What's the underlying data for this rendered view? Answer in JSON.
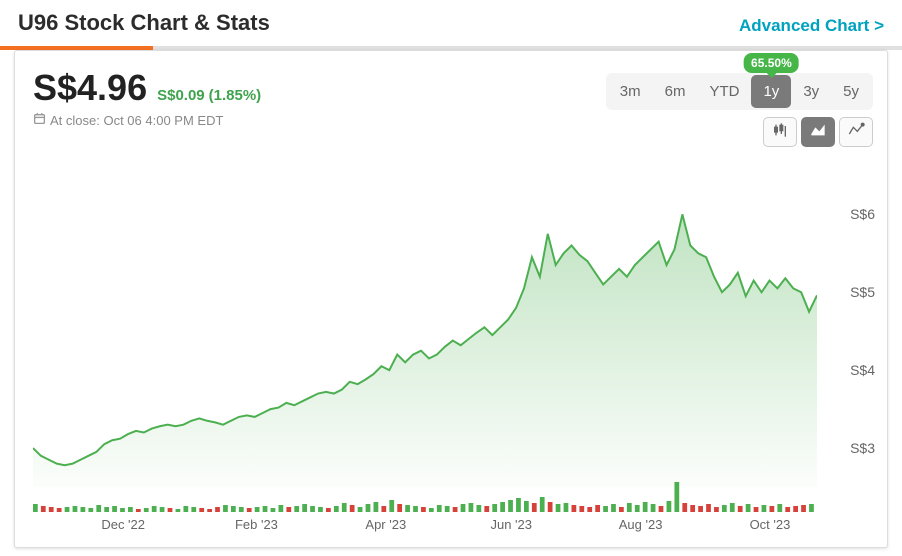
{
  "header": {
    "title": "U96 Stock Chart & Stats",
    "advanced_link": "Advanced Chart >",
    "progress_pct": 17
  },
  "quote": {
    "price": "S$4.96",
    "delta_abs": "S$0.09",
    "delta_pct": "(1.85%)",
    "delta_positive": true,
    "close_text": "At close: Oct 06 4:00 PM EDT"
  },
  "ranges": {
    "items": [
      "3m",
      "6m",
      "YTD",
      "1y",
      "3y",
      "5y"
    ],
    "active_index": 3,
    "active_badge": "65.50%"
  },
  "chart_types": {
    "items": [
      "candlestick",
      "area",
      "line"
    ],
    "active_index": 1
  },
  "chart": {
    "type": "area",
    "line_color": "#4caf50",
    "line_width": 2,
    "fill_top": "rgba(76,175,80,0.35)",
    "fill_bottom": "rgba(76,175,80,0.02)",
    "y_min": 2.5,
    "y_max": 6.3,
    "y_ticks": [
      3,
      4,
      5,
      6
    ],
    "y_tick_prefix": "S$",
    "x_labels": [
      "Dec '22",
      "Feb '23",
      "Apr '23",
      "Jun '23",
      "Aug '23",
      "Oct '23"
    ],
    "x_label_positions_pct": [
      11.5,
      28.5,
      45,
      61,
      77.5,
      94
    ],
    "series": [
      3.0,
      2.9,
      2.85,
      2.8,
      2.78,
      2.8,
      2.85,
      2.9,
      2.95,
      3.05,
      3.1,
      3.12,
      3.18,
      3.22,
      3.2,
      3.25,
      3.28,
      3.3,
      3.28,
      3.3,
      3.35,
      3.38,
      3.35,
      3.33,
      3.3,
      3.35,
      3.4,
      3.42,
      3.4,
      3.45,
      3.5,
      3.52,
      3.58,
      3.55,
      3.6,
      3.65,
      3.7,
      3.72,
      3.7,
      3.75,
      3.85,
      3.82,
      3.88,
      3.95,
      4.05,
      4.0,
      4.2,
      4.1,
      4.2,
      4.25,
      4.15,
      4.2,
      4.3,
      4.38,
      4.32,
      4.4,
      4.48,
      4.55,
      4.45,
      4.55,
      4.65,
      4.8,
      5.05,
      5.45,
      5.2,
      5.75,
      5.35,
      5.5,
      5.6,
      5.48,
      5.4,
      5.25,
      5.1,
      5.2,
      5.3,
      5.2,
      5.35,
      5.45,
      5.55,
      5.65,
      5.35,
      5.55,
      6.0,
      5.6,
      5.5,
      5.45,
      5.2,
      5.0,
      5.1,
      5.25,
      4.95,
      5.15,
      5.0,
      5.15,
      5.05,
      5.18,
      5.05,
      5.0,
      4.75,
      4.96
    ],
    "volume": {
      "up_color": "#4caf50",
      "down_color": "#d6423a",
      "values": [
        {
          "v": 8,
          "d": 1
        },
        {
          "v": 6,
          "d": -1
        },
        {
          "v": 5,
          "d": -1
        },
        {
          "v": 4,
          "d": -1
        },
        {
          "v": 5,
          "d": 1
        },
        {
          "v": 6,
          "d": 1
        },
        {
          "v": 5,
          "d": 1
        },
        {
          "v": 4,
          "d": 1
        },
        {
          "v": 7,
          "d": 1
        },
        {
          "v": 5,
          "d": 1
        },
        {
          "v": 6,
          "d": 1
        },
        {
          "v": 4,
          "d": 1
        },
        {
          "v": 5,
          "d": 1
        },
        {
          "v": 3,
          "d": -1
        },
        {
          "v": 4,
          "d": 1
        },
        {
          "v": 6,
          "d": 1
        },
        {
          "v": 5,
          "d": 1
        },
        {
          "v": 4,
          "d": -1
        },
        {
          "v": 3,
          "d": 1
        },
        {
          "v": 6,
          "d": 1
        },
        {
          "v": 5,
          "d": 1
        },
        {
          "v": 4,
          "d": -1
        },
        {
          "v": 3,
          "d": -1
        },
        {
          "v": 5,
          "d": -1
        },
        {
          "v": 7,
          "d": 1
        },
        {
          "v": 6,
          "d": 1
        },
        {
          "v": 5,
          "d": 1
        },
        {
          "v": 4,
          "d": -1
        },
        {
          "v": 5,
          "d": 1
        },
        {
          "v": 6,
          "d": 1
        },
        {
          "v": 4,
          "d": 1
        },
        {
          "v": 7,
          "d": 1
        },
        {
          "v": 5,
          "d": -1
        },
        {
          "v": 6,
          "d": 1
        },
        {
          "v": 8,
          "d": 1
        },
        {
          "v": 6,
          "d": 1
        },
        {
          "v": 5,
          "d": 1
        },
        {
          "v": 4,
          "d": -1
        },
        {
          "v": 6,
          "d": 1
        },
        {
          "v": 9,
          "d": 1
        },
        {
          "v": 7,
          "d": -1
        },
        {
          "v": 5,
          "d": 1
        },
        {
          "v": 8,
          "d": 1
        },
        {
          "v": 10,
          "d": 1
        },
        {
          "v": 6,
          "d": -1
        },
        {
          "v": 12,
          "d": 1
        },
        {
          "v": 8,
          "d": -1
        },
        {
          "v": 7,
          "d": 1
        },
        {
          "v": 6,
          "d": 1
        },
        {
          "v": 5,
          "d": -1
        },
        {
          "v": 4,
          "d": 1
        },
        {
          "v": 7,
          "d": 1
        },
        {
          "v": 6,
          "d": 1
        },
        {
          "v": 5,
          "d": -1
        },
        {
          "v": 8,
          "d": 1
        },
        {
          "v": 9,
          "d": 1
        },
        {
          "v": 7,
          "d": 1
        },
        {
          "v": 6,
          "d": -1
        },
        {
          "v": 8,
          "d": 1
        },
        {
          "v": 10,
          "d": 1
        },
        {
          "v": 12,
          "d": 1
        },
        {
          "v": 14,
          "d": 1
        },
        {
          "v": 11,
          "d": 1
        },
        {
          "v": 9,
          "d": -1
        },
        {
          "v": 15,
          "d": 1
        },
        {
          "v": 10,
          "d": -1
        },
        {
          "v": 8,
          "d": 1
        },
        {
          "v": 9,
          "d": 1
        },
        {
          "v": 7,
          "d": -1
        },
        {
          "v": 6,
          "d": -1
        },
        {
          "v": 5,
          "d": -1
        },
        {
          "v": 7,
          "d": -1
        },
        {
          "v": 6,
          "d": 1
        },
        {
          "v": 8,
          "d": 1
        },
        {
          "v": 5,
          "d": -1
        },
        {
          "v": 9,
          "d": 1
        },
        {
          "v": 7,
          "d": 1
        },
        {
          "v": 10,
          "d": 1
        },
        {
          "v": 8,
          "d": 1
        },
        {
          "v": 6,
          "d": -1
        },
        {
          "v": 11,
          "d": 1
        },
        {
          "v": 30,
          "d": 1
        },
        {
          "v": 9,
          "d": -1
        },
        {
          "v": 7,
          "d": -1
        },
        {
          "v": 6,
          "d": -1
        },
        {
          "v": 8,
          "d": -1
        },
        {
          "v": 5,
          "d": -1
        },
        {
          "v": 7,
          "d": 1
        },
        {
          "v": 9,
          "d": 1
        },
        {
          "v": 6,
          "d": -1
        },
        {
          "v": 8,
          "d": 1
        },
        {
          "v": 5,
          "d": -1
        },
        {
          "v": 7,
          "d": 1
        },
        {
          "v": 6,
          "d": -1
        },
        {
          "v": 8,
          "d": 1
        },
        {
          "v": 5,
          "d": -1
        },
        {
          "v": 6,
          "d": -1
        },
        {
          "v": 7,
          "d": -1
        },
        {
          "v": 8,
          "d": 1
        }
      ]
    }
  },
  "colors": {
    "link": "#00a3bf",
    "accent": "#f37021",
    "positive": "#3fa34d",
    "range_active_bg": "#7a7a7a"
  }
}
